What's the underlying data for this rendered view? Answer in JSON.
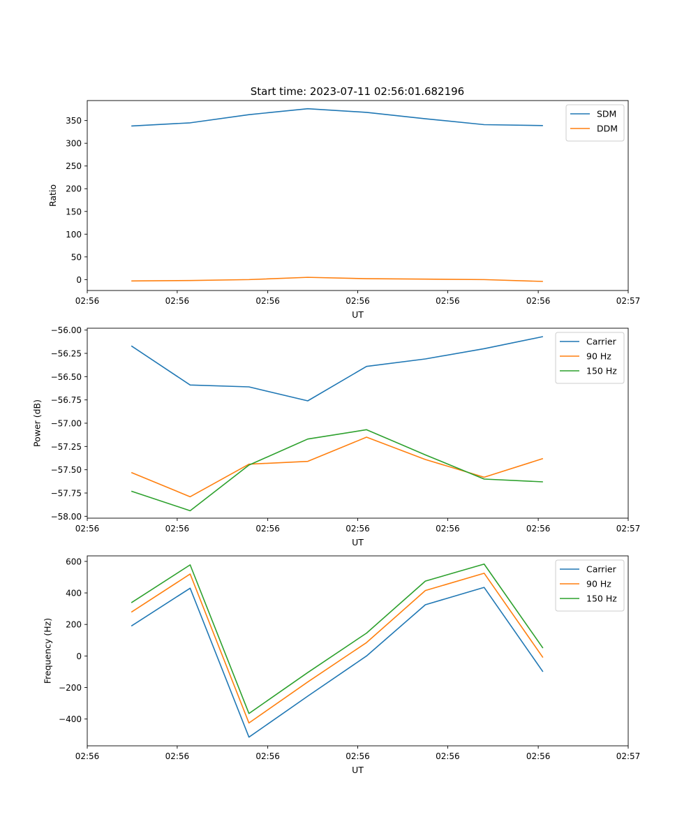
{
  "figure_title": "Start time: 2023-07-11 02:56:01.682196",
  "chart_data": [
    {
      "type": "line",
      "xlabel": "UT",
      "ylabel": "Ratio",
      "x_index": [
        0,
        1,
        2,
        3,
        4,
        5,
        6,
        7
      ],
      "xlim": [
        -0.75,
        8.45
      ],
      "x_ticks": [
        -0.75,
        0.78,
        2.32,
        3.85,
        5.38,
        6.92,
        8.45
      ],
      "x_tick_labels": [
        "02:56",
        "02:56",
        "02:56",
        "02:56",
        "02:56",
        "02:56",
        "02:57"
      ],
      "ylim": [
        -24,
        394
      ],
      "y_ticks": [
        0,
        50,
        100,
        150,
        200,
        250,
        300,
        350
      ],
      "y_tick_labels": [
        "0",
        "50",
        "100",
        "150",
        "200",
        "250",
        "300",
        "350"
      ],
      "legend": "top-right",
      "series": [
        {
          "name": "SDM",
          "color": "#1f77b4",
          "values": [
            338,
            345,
            363,
            376,
            368,
            354,
            341,
            339
          ]
        },
        {
          "name": "DDM",
          "color": "#ff7f0e",
          "values": [
            -3,
            -2,
            0,
            5,
            2,
            1,
            0,
            -4
          ]
        }
      ]
    },
    {
      "type": "line",
      "xlabel": "UT",
      "ylabel": "Power (dB)",
      "x_index": [
        0,
        1,
        2,
        3,
        4,
        5,
        6,
        7
      ],
      "xlim": [
        -0.75,
        8.45
      ],
      "x_ticks": [
        -0.75,
        0.78,
        2.32,
        3.85,
        5.38,
        6.92,
        8.45
      ],
      "x_tick_labels": [
        "02:56",
        "02:56",
        "02:56",
        "02:56",
        "02:56",
        "02:56",
        "02:57"
      ],
      "ylim": [
        -58.02,
        -55.98
      ],
      "y_ticks": [
        -58.0,
        -57.75,
        -57.5,
        -57.25,
        -57.0,
        -56.75,
        -56.5,
        -56.25,
        -56.0
      ],
      "y_tick_labels": [
        "−58.00",
        "−57.75",
        "−57.50",
        "−57.25",
        "−57.00",
        "−56.75",
        "−56.50",
        "−56.25",
        "−56.00"
      ],
      "legend": "top-right",
      "series": [
        {
          "name": "Carrier",
          "color": "#1f77b4",
          "values": [
            -56.17,
            -56.59,
            -56.61,
            -56.76,
            -56.39,
            -56.31,
            -56.2,
            -56.07
          ]
        },
        {
          "name": "90 Hz",
          "color": "#ff7f0e",
          "values": [
            -57.53,
            -57.79,
            -57.44,
            -57.41,
            -57.15,
            -57.39,
            -57.58,
            -57.38
          ]
        },
        {
          "name": "150 Hz",
          "color": "#2ca02c",
          "values": [
            -57.73,
            -57.94,
            -57.45,
            -57.17,
            -57.07,
            -57.34,
            -57.6,
            -57.63
          ]
        }
      ]
    },
    {
      "type": "line",
      "xlabel": "UT",
      "ylabel": "Frequency (Hz)",
      "x_index": [
        0,
        1,
        2,
        3,
        4,
        5,
        6,
        7
      ],
      "xlim": [
        -0.75,
        8.45
      ],
      "x_ticks": [
        -0.75,
        0.78,
        2.32,
        3.85,
        5.38,
        6.92,
        8.45
      ],
      "x_tick_labels": [
        "02:56",
        "02:56",
        "02:56",
        "02:56",
        "02:56",
        "02:56",
        "02:57"
      ],
      "ylim": [
        -570,
        635
      ],
      "y_ticks": [
        -400,
        -200,
        0,
        200,
        400,
        600
      ],
      "y_tick_labels": [
        "−400",
        "−200",
        "0",
        "200",
        "400",
        "600"
      ],
      "legend": "top-right",
      "series": [
        {
          "name": "Carrier",
          "color": "#1f77b4",
          "values": [
            190,
            430,
            -515,
            -255,
            0,
            325,
            435,
            -100
          ]
        },
        {
          "name": "90 Hz",
          "color": "#ff7f0e",
          "values": [
            278,
            520,
            -425,
            -165,
            85,
            415,
            525,
            -10
          ]
        },
        {
          "name": "150 Hz",
          "color": "#2ca02c",
          "values": [
            338,
            578,
            -365,
            -105,
            145,
            475,
            583,
            50
          ]
        }
      ]
    }
  ]
}
